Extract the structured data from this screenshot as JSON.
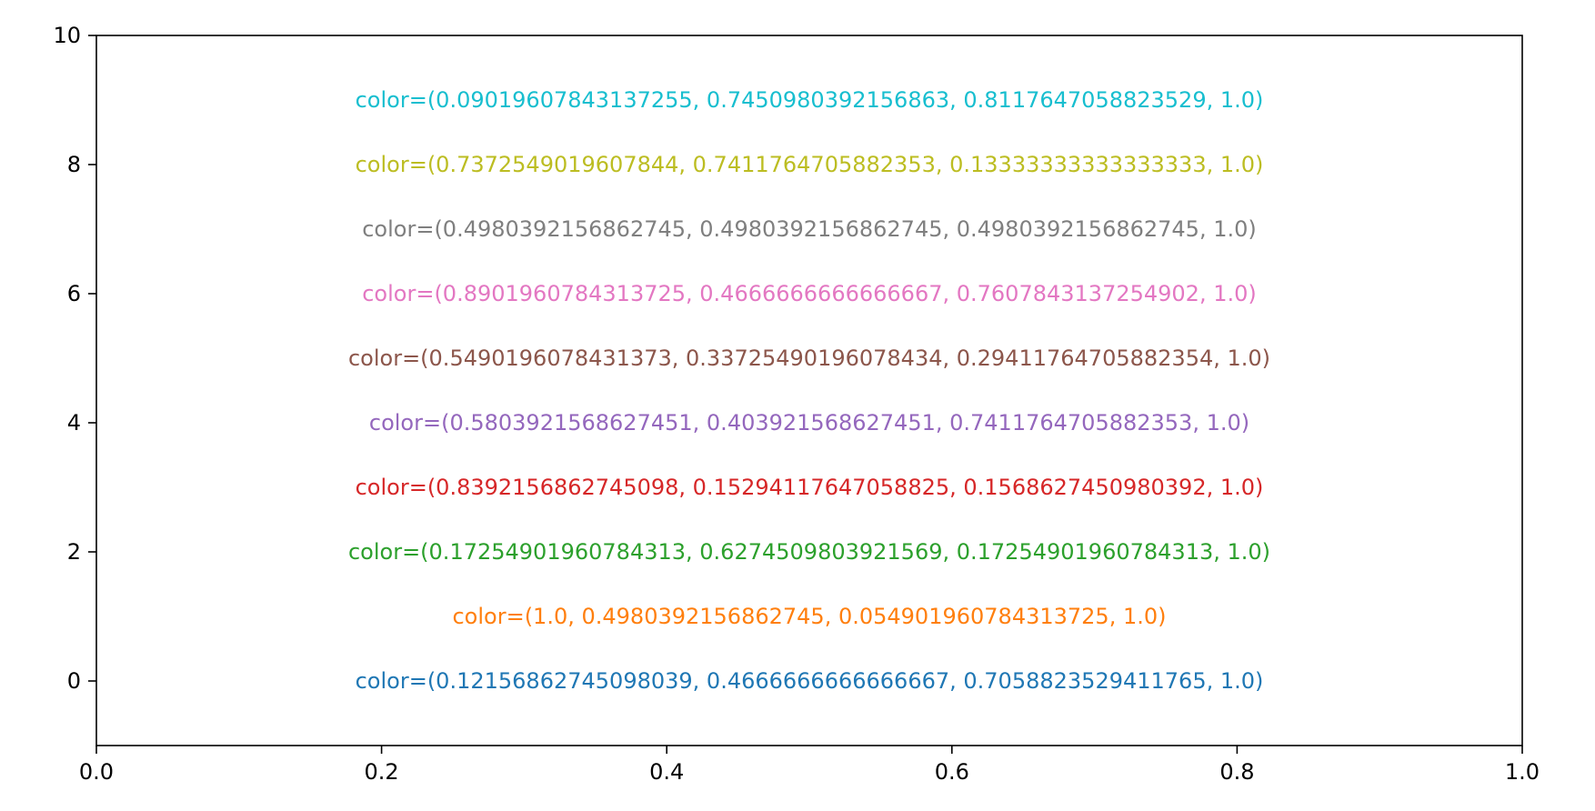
{
  "chart_data": {
    "type": "scatter",
    "title": "",
    "xlabel": "",
    "ylabel": "",
    "xlim": [
      0.0,
      1.0
    ],
    "ylim": [
      -1,
      10
    ],
    "grid": false,
    "x_ticks": [
      0.0,
      0.2,
      0.4,
      0.6,
      0.8,
      1.0
    ],
    "x_tick_labels": [
      "0.0",
      "0.2",
      "0.4",
      "0.6",
      "0.8",
      "1.0"
    ],
    "y_ticks": [
      0,
      2,
      4,
      6,
      8,
      10
    ],
    "y_tick_labels": [
      "0",
      "2",
      "4",
      "6",
      "8",
      "10"
    ],
    "annotations": [
      {
        "x": 0.5,
        "y": 0,
        "text": "color=(0.12156862745098039, 0.4666666666666667, 0.7058823529411765, 1.0)",
        "color": "#1f77b4"
      },
      {
        "x": 0.5,
        "y": 1,
        "text": "color=(1.0, 0.4980392156862745, 0.054901960784313725, 1.0)",
        "color": "#ff7f0e"
      },
      {
        "x": 0.5,
        "y": 2,
        "text": "color=(0.17254901960784313, 0.6274509803921569, 0.17254901960784313, 1.0)",
        "color": "#2ca02c"
      },
      {
        "x": 0.5,
        "y": 3,
        "text": "color=(0.8392156862745098, 0.15294117647058825, 0.1568627450980392, 1.0)",
        "color": "#d62728"
      },
      {
        "x": 0.5,
        "y": 4,
        "text": "color=(0.5803921568627451, 0.403921568627451, 0.7411764705882353, 1.0)",
        "color": "#9467bd"
      },
      {
        "x": 0.5,
        "y": 5,
        "text": "color=(0.5490196078431373, 0.33725490196078434, 0.29411764705882354, 1.0)",
        "color": "#8c564b"
      },
      {
        "x": 0.5,
        "y": 6,
        "text": "color=(0.8901960784313725, 0.4666666666666667, 0.7607843137254902, 1.0)",
        "color": "#e377c2"
      },
      {
        "x": 0.5,
        "y": 7,
        "text": "color=(0.4980392156862745, 0.4980392156862745, 0.4980392156862745, 1.0)",
        "color": "#7f7f7f"
      },
      {
        "x": 0.5,
        "y": 8,
        "text": "color=(0.7372549019607844, 0.7411764705882353, 0.13333333333333333, 1.0)",
        "color": "#bcbd22"
      },
      {
        "x": 0.5,
        "y": 9,
        "text": "color=(0.09019607843137255, 0.7450980392156863, 0.8117647058823529, 1.0)",
        "color": "#17becf"
      }
    ]
  }
}
